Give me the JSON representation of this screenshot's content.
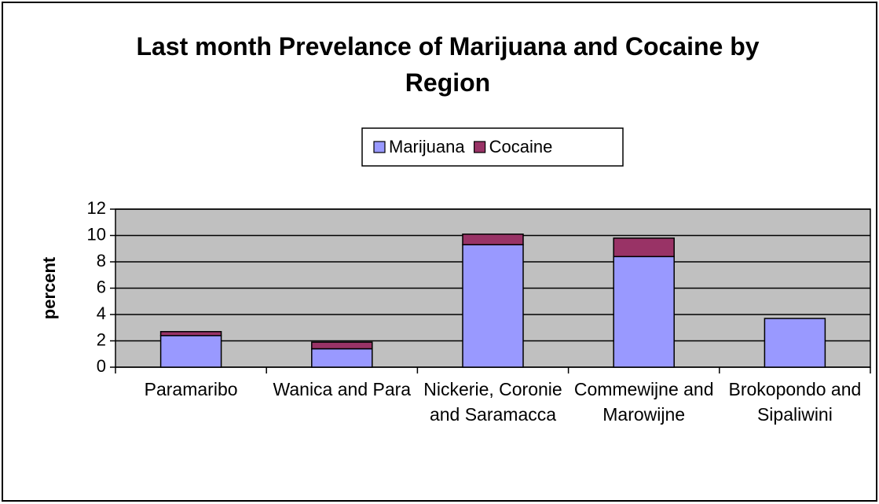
{
  "chart_data": {
    "type": "stacked_bar",
    "title": "Last month Prevelance of Marijuana and Cocaine by Region",
    "ylabel": "percent",
    "categories": [
      "Paramaribo",
      "Wanica and Para",
      "Nickerie, Coronie and Saramacca",
      "Commewijne and Marowijne",
      "Brokopondo and Sipaliwini"
    ],
    "series": [
      {
        "name": "Marijuana",
        "color": "#9999ff",
        "values": [
          2.4,
          1.4,
          9.3,
          8.4,
          3.7
        ]
      },
      {
        "name": "Cocaine",
        "color": "#993366",
        "values": [
          0.3,
          0.5,
          0.8,
          1.4,
          0
        ]
      }
    ],
    "ylim": [
      0,
      12
    ],
    "yticks": [
      0,
      2,
      4,
      6,
      8,
      10,
      12
    ],
    "grid": true,
    "legend": "top"
  }
}
